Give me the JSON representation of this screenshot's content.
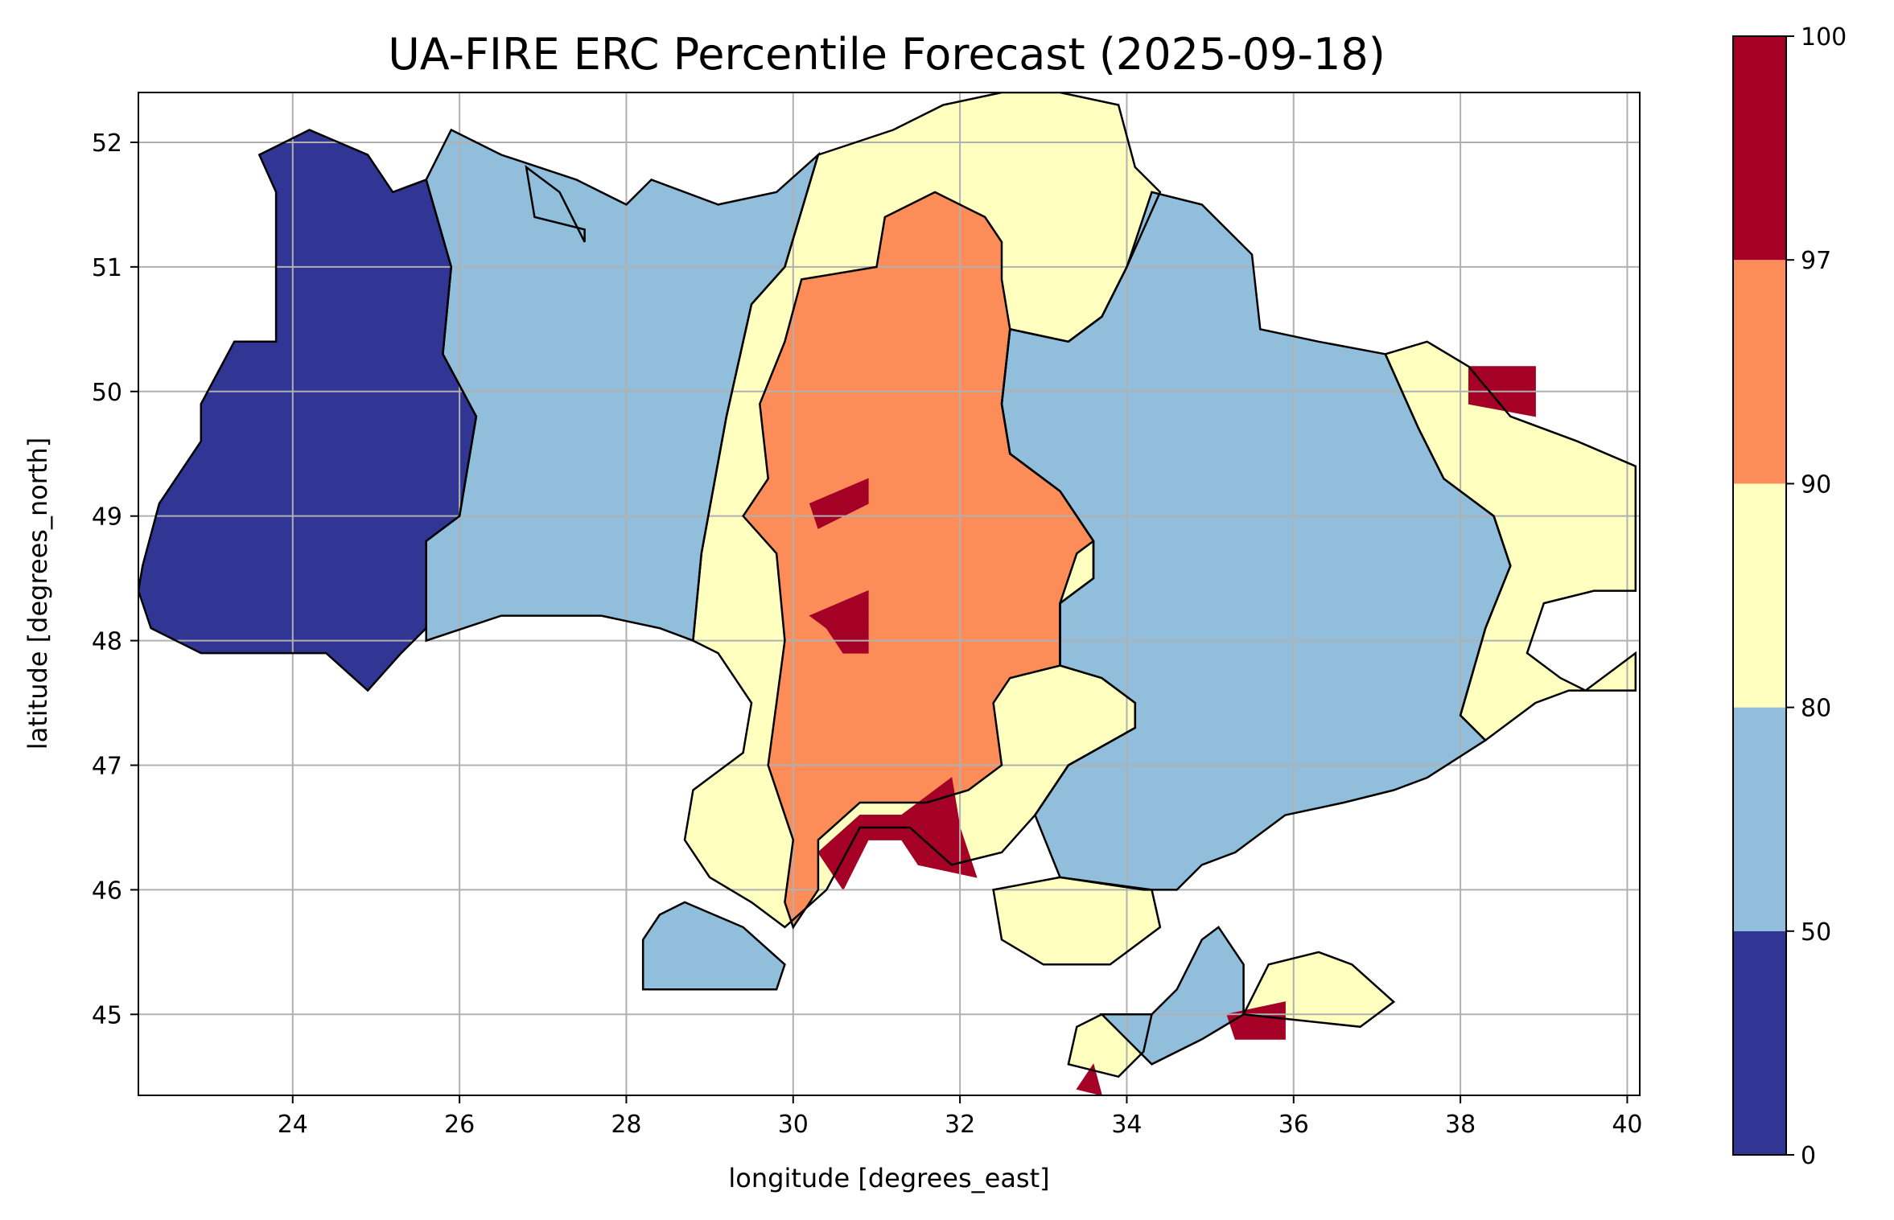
{
  "title": "UA-FIRE ERC Percentile Forecast (2025-09-18)",
  "chart_data": {
    "type": "heatmap",
    "title": "UA-FIRE ERC Percentile Forecast (2025-09-18)",
    "xlabel": "longitude [degrees_east]",
    "ylabel": "latitude [degrees_north]",
    "xlim": [
      22.15,
      40.15
    ],
    "ylim": [
      44.35,
      52.4
    ],
    "xticks": [
      24,
      26,
      28,
      30,
      32,
      34,
      36,
      38,
      40
    ],
    "yticks": [
      45,
      46,
      47,
      48,
      49,
      50,
      51,
      52
    ],
    "grid": true,
    "colorbar": {
      "bounds": [
        0,
        50,
        80,
        90,
        97,
        100
      ],
      "tick_labels": [
        "0",
        "50",
        "80",
        "90",
        "97",
        "100"
      ],
      "colors": [
        "#313695",
        "#91bfdb",
        "#ffffbf",
        "#fc8d59",
        "#a50026"
      ],
      "placement": "right"
    },
    "category_legend": [
      {
        "range": "0-50",
        "color": "#313695"
      },
      {
        "range": "50-80",
        "color": "#91bfdb"
      },
      {
        "range": "80-90",
        "color": "#ffffbf"
      },
      {
        "range": "90-97",
        "color": "#fc8d59"
      },
      {
        "range": "97-100",
        "color": "#a50026"
      }
    ],
    "regions": [
      {
        "category": 0,
        "polygon": [
          [
            22.2,
            48.6
          ],
          [
            22.4,
            49.1
          ],
          [
            22.9,
            49.6
          ],
          [
            22.9,
            49.9
          ],
          [
            23.3,
            50.4
          ],
          [
            23.8,
            50.4
          ],
          [
            23.8,
            51.6
          ],
          [
            23.6,
            51.9
          ],
          [
            24.2,
            52.1
          ],
          [
            24.9,
            51.9
          ],
          [
            25.2,
            51.6
          ],
          [
            25.6,
            51.7
          ],
          [
            25.9,
            51.0
          ],
          [
            25.8,
            50.3
          ],
          [
            26.2,
            49.8
          ],
          [
            26.0,
            49.0
          ],
          [
            25.6,
            48.8
          ],
          [
            25.6,
            48.1
          ],
          [
            25.3,
            47.9
          ],
          [
            24.9,
            47.6
          ],
          [
            24.4,
            47.9
          ],
          [
            23.5,
            47.9
          ],
          [
            22.9,
            47.9
          ],
          [
            22.3,
            48.1
          ],
          [
            22.15,
            48.4
          ]
        ]
      },
      {
        "category": 0,
        "polygon": [
          [
            26.8,
            51.8
          ],
          [
            27.2,
            51.6
          ],
          [
            27.5,
            51.2
          ],
          [
            27.5,
            51.3
          ],
          [
            26.9,
            51.4
          ]
        ]
      },
      {
        "category": 1,
        "polygon": [
          [
            25.9,
            52.1
          ],
          [
            26.5,
            51.9
          ],
          [
            27.4,
            51.7
          ],
          [
            28.0,
            51.5
          ],
          [
            28.3,
            51.7
          ],
          [
            29.1,
            51.5
          ],
          [
            29.8,
            51.6
          ],
          [
            30.3,
            51.9
          ],
          [
            29.9,
            51.0
          ],
          [
            29.5,
            50.7
          ],
          [
            29.2,
            49.8
          ],
          [
            28.9,
            48.7
          ],
          [
            28.8,
            48.0
          ],
          [
            28.4,
            48.1
          ],
          [
            27.7,
            48.2
          ],
          [
            26.5,
            48.2
          ],
          [
            25.6,
            48.0
          ],
          [
            25.6,
            48.8
          ],
          [
            26.0,
            49.0
          ],
          [
            26.2,
            49.8
          ],
          [
            25.8,
            50.3
          ],
          [
            25.9,
            51.0
          ],
          [
            25.6,
            51.7
          ]
        ]
      },
      {
        "category": 1,
        "polygon": [
          [
            28.2,
            45.6
          ],
          [
            28.4,
            45.8
          ],
          [
            28.7,
            45.9
          ],
          [
            29.4,
            45.7
          ],
          [
            29.9,
            45.4
          ],
          [
            29.8,
            45.2
          ],
          [
            28.9,
            45.2
          ],
          [
            28.2,
            45.2
          ]
        ]
      },
      {
        "category": 2,
        "polygon": [
          [
            30.3,
            51.9
          ],
          [
            31.2,
            52.1
          ],
          [
            31.8,
            52.3
          ],
          [
            32.5,
            52.4
          ],
          [
            33.2,
            52.4
          ],
          [
            33.9,
            52.3
          ],
          [
            34.1,
            51.8
          ],
          [
            34.4,
            51.6
          ],
          [
            34.0,
            51.0
          ],
          [
            33.7,
            50.6
          ],
          [
            33.3,
            50.4
          ],
          [
            32.6,
            50.5
          ],
          [
            32.5,
            49.9
          ],
          [
            32.6,
            49.5
          ],
          [
            33.2,
            49.2
          ],
          [
            33.6,
            48.8
          ],
          [
            33.6,
            48.5
          ],
          [
            33.2,
            48.3
          ],
          [
            33.2,
            47.8
          ],
          [
            33.7,
            47.7
          ],
          [
            34.1,
            47.5
          ],
          [
            34.1,
            47.3
          ],
          [
            33.3,
            47.0
          ],
          [
            32.9,
            46.6
          ],
          [
            32.5,
            46.3
          ],
          [
            31.9,
            46.2
          ],
          [
            31.4,
            46.5
          ],
          [
            30.8,
            46.5
          ],
          [
            30.4,
            46.0
          ],
          [
            29.9,
            45.7
          ],
          [
            29.5,
            45.9
          ],
          [
            29.0,
            46.1
          ],
          [
            28.7,
            46.4
          ],
          [
            28.8,
            46.8
          ],
          [
            29.4,
            47.1
          ],
          [
            29.5,
            47.5
          ],
          [
            29.1,
            47.9
          ],
          [
            28.8,
            48.0
          ],
          [
            28.9,
            48.7
          ],
          [
            29.2,
            49.8
          ],
          [
            29.5,
            50.7
          ],
          [
            29.9,
            51.0
          ]
        ]
      },
      {
        "category": 2,
        "polygon": [
          [
            32.4,
            46.0
          ],
          [
            33.2,
            46.1
          ],
          [
            34.3,
            46.0
          ],
          [
            34.4,
            45.7
          ],
          [
            33.8,
            45.4
          ],
          [
            33.0,
            45.4
          ],
          [
            32.5,
            45.6
          ]
        ]
      },
      {
        "category": 2,
        "polygon": [
          [
            33.3,
            44.6
          ],
          [
            33.9,
            44.5
          ],
          [
            34.2,
            44.7
          ],
          [
            34.3,
            45.0
          ],
          [
            33.7,
            45.0
          ],
          [
            33.4,
            44.9
          ]
        ]
      },
      {
        "category": 2,
        "polygon": [
          [
            37.1,
            50.3
          ],
          [
            37.6,
            50.4
          ],
          [
            38.1,
            50.2
          ],
          [
            38.6,
            49.8
          ],
          [
            39.4,
            49.6
          ],
          [
            40.1,
            49.4
          ],
          [
            40.1,
            48.4
          ],
          [
            39.6,
            48.4
          ],
          [
            39.0,
            48.3
          ],
          [
            38.8,
            47.9
          ],
          [
            39.2,
            47.7
          ],
          [
            39.5,
            47.6
          ],
          [
            39.9,
            47.8
          ],
          [
            40.1,
            47.9
          ],
          [
            40.1,
            47.6
          ],
          [
            39.3,
            47.6
          ],
          [
            38.9,
            47.5
          ],
          [
            38.3,
            47.2
          ],
          [
            38.0,
            47.4
          ],
          [
            38.3,
            48.1
          ],
          [
            38.6,
            48.6
          ],
          [
            38.4,
            49.0
          ],
          [
            37.8,
            49.3
          ],
          [
            37.5,
            49.7
          ],
          [
            37.3,
            50.0
          ]
        ]
      },
      {
        "category": 2,
        "polygon": [
          [
            36.8,
            44.9
          ],
          [
            37.2,
            45.1
          ],
          [
            36.7,
            45.4
          ],
          [
            36.3,
            45.5
          ],
          [
            35.7,
            45.4
          ],
          [
            35.4,
            45.0
          ]
        ]
      },
      {
        "category": 1,
        "polygon": [
          [
            34.3,
            51.6
          ],
          [
            34.9,
            51.5
          ],
          [
            35.5,
            51.1
          ],
          [
            35.6,
            50.5
          ],
          [
            36.3,
            50.4
          ],
          [
            37.1,
            50.3
          ],
          [
            37.3,
            50.0
          ],
          [
            37.5,
            49.7
          ],
          [
            37.8,
            49.3
          ],
          [
            38.4,
            49.0
          ],
          [
            38.6,
            48.6
          ],
          [
            38.3,
            48.1
          ],
          [
            38.0,
            47.4
          ],
          [
            38.3,
            47.2
          ],
          [
            37.6,
            46.9
          ],
          [
            37.2,
            46.8
          ],
          [
            36.6,
            46.7
          ],
          [
            35.9,
            46.6
          ],
          [
            35.3,
            46.3
          ],
          [
            34.9,
            46.2
          ],
          [
            34.6,
            46.0
          ],
          [
            34.2,
            46.0
          ],
          [
            33.2,
            46.1
          ],
          [
            32.9,
            46.6
          ],
          [
            33.3,
            47.0
          ],
          [
            34.1,
            47.3
          ],
          [
            34.1,
            47.5
          ],
          [
            33.7,
            47.7
          ],
          [
            33.2,
            47.8
          ],
          [
            33.2,
            48.3
          ],
          [
            33.6,
            48.5
          ],
          [
            33.6,
            48.8
          ],
          [
            33.2,
            49.2
          ],
          [
            32.6,
            49.5
          ],
          [
            32.5,
            49.9
          ],
          [
            32.6,
            50.5
          ],
          [
            33.3,
            50.4
          ],
          [
            33.7,
            50.6
          ],
          [
            34.0,
            51.0
          ]
        ]
      },
      {
        "category": 1,
        "polygon": [
          [
            33.7,
            45.0
          ],
          [
            34.3,
            45.0
          ],
          [
            34.6,
            45.2
          ],
          [
            34.9,
            45.6
          ],
          [
            35.1,
            45.7
          ],
          [
            35.4,
            45.4
          ],
          [
            35.4,
            45.0
          ],
          [
            34.9,
            44.8
          ],
          [
            34.3,
            44.6
          ]
        ]
      },
      {
        "category": 3,
        "polygon": [
          [
            30.1,
            50.9
          ],
          [
            31.0,
            51.0
          ],
          [
            31.1,
            51.4
          ],
          [
            31.7,
            51.6
          ],
          [
            32.3,
            51.4
          ],
          [
            32.5,
            51.2
          ],
          [
            32.5,
            50.9
          ],
          [
            32.6,
            50.5
          ],
          [
            32.5,
            49.9
          ],
          [
            32.6,
            49.5
          ],
          [
            33.2,
            49.2
          ],
          [
            33.6,
            48.8
          ],
          [
            33.4,
            48.7
          ],
          [
            33.2,
            48.3
          ],
          [
            33.2,
            47.8
          ],
          [
            32.6,
            47.7
          ],
          [
            32.4,
            47.5
          ],
          [
            32.5,
            47.0
          ],
          [
            32.1,
            46.8
          ],
          [
            31.6,
            46.7
          ],
          [
            30.8,
            46.7
          ],
          [
            30.3,
            46.4
          ],
          [
            30.3,
            46.0
          ],
          [
            30.0,
            45.7
          ],
          [
            29.9,
            45.9
          ],
          [
            30.0,
            46.4
          ],
          [
            29.7,
            47.0
          ],
          [
            29.8,
            47.5
          ],
          [
            29.9,
            48.0
          ],
          [
            29.8,
            48.7
          ],
          [
            29.4,
            49.0
          ],
          [
            29.7,
            49.3
          ],
          [
            29.6,
            49.9
          ],
          [
            29.9,
            50.4
          ]
        ]
      },
      {
        "category": 4,
        "polygon": [
          [
            30.2,
            49.1
          ],
          [
            30.9,
            49.3
          ],
          [
            30.9,
            49.1
          ],
          [
            30.3,
            48.9
          ]
        ]
      },
      {
        "category": 4,
        "polygon": [
          [
            30.2,
            48.2
          ],
          [
            30.9,
            48.4
          ],
          [
            30.9,
            47.9
          ],
          [
            30.6,
            47.9
          ],
          [
            30.4,
            48.1
          ]
        ]
      },
      {
        "category": 4,
        "polygon": [
          [
            30.3,
            46.3
          ],
          [
            30.8,
            46.6
          ],
          [
            31.3,
            46.6
          ],
          [
            31.9,
            46.9
          ],
          [
            32.0,
            46.5
          ],
          [
            32.2,
            46.1
          ],
          [
            31.5,
            46.2
          ],
          [
            31.3,
            46.4
          ],
          [
            30.9,
            46.4
          ],
          [
            30.6,
            46.0
          ]
        ]
      },
      {
        "category": 4,
        "polygon": [
          [
            38.1,
            50.2
          ],
          [
            38.9,
            50.2
          ],
          [
            38.9,
            49.8
          ],
          [
            38.1,
            49.9
          ]
        ]
      },
      {
        "category": 4,
        "polygon": [
          [
            35.2,
            45.0
          ],
          [
            35.9,
            45.1
          ],
          [
            35.9,
            44.8
          ],
          [
            35.3,
            44.8
          ]
        ]
      },
      {
        "category": 4,
        "polygon": [
          [
            33.4,
            44.4
          ],
          [
            33.6,
            44.6
          ],
          [
            33.7,
            44.35
          ]
        ]
      }
    ]
  }
}
